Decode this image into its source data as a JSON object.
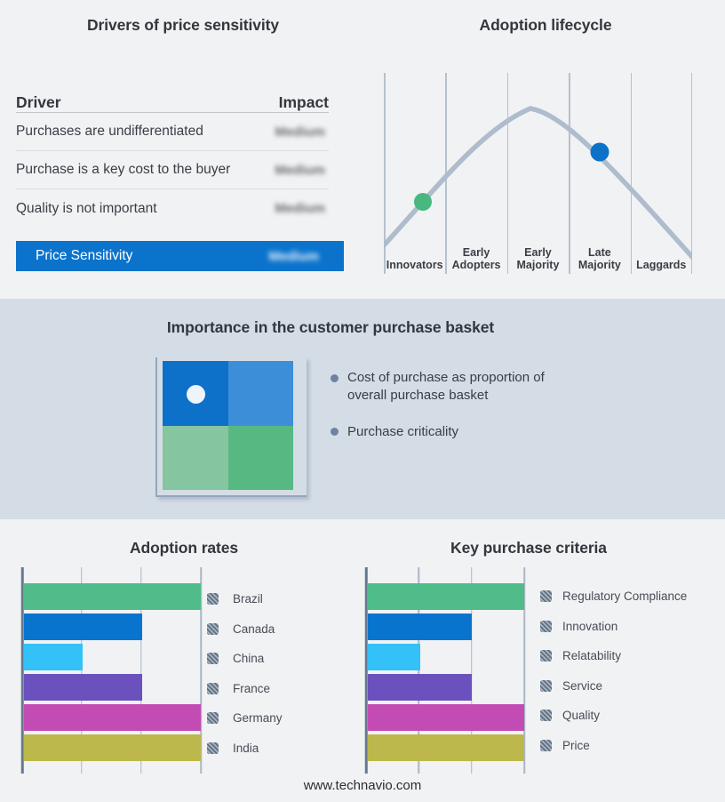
{
  "page": {
    "footer": "www.technavio.com"
  },
  "colors": {
    "accent_blue": "#0b73cc",
    "band_background": "#d4dde6",
    "page_background": "#f1f2f4",
    "curve": "#aebccd",
    "green_dot": "#48b87e",
    "blue_dot": "#0b72c8"
  },
  "price_table": {
    "title": "Drivers of price sensitivity",
    "col_driver": "Driver",
    "col_impact": "Impact",
    "rows": [
      {
        "driver": "Purchases are undifferentiated",
        "impact": "Medium"
      },
      {
        "driver": "Purchase is a key cost to the buyer",
        "impact": "Medium"
      },
      {
        "driver": "Quality is not important",
        "impact": "Medium"
      }
    ],
    "highlight_row": {
      "driver": "Price Sensitivity",
      "impact": "Medium"
    }
  },
  "lifecycle": {
    "title": "Adoption lifecycle",
    "stages": [
      "Innovators",
      "Early Adopters",
      "Early Majority",
      "Late Majority",
      "Laggards"
    ],
    "markers": [
      {
        "stage": "Innovators",
        "color": "#48b87e"
      },
      {
        "stage": "Late Majority",
        "color": "#0b72c8"
      }
    ]
  },
  "purchase_basket": {
    "title": "Importance in the customer purchase basket",
    "bullets": [
      "Cost of purchase as proportion of overall purchase basket",
      "Purchase criticality"
    ],
    "quadrant_colors": {
      "top_left": "#0d70c9",
      "top_right": "#3d8ed8",
      "bottom_left": "#85c5a0",
      "bottom_right": "#57b981"
    }
  },
  "chart_data": [
    {
      "type": "bar",
      "orientation": "horizontal",
      "title": "Adoption rates",
      "categories": [
        "Brazil",
        "Canada",
        "China",
        "France",
        "Germany",
        "India"
      ],
      "values": [
        3,
        2,
        1,
        2,
        3,
        3
      ],
      "colors": [
        "#4fbc8a",
        "#0874cd",
        "#33c1f7",
        "#6a51bd",
        "#c24cb4",
        "#bdb84b"
      ],
      "xlim": [
        0,
        3
      ],
      "grid_divisions": 3,
      "legend_position": "right",
      "axis_labels_hidden": true
    },
    {
      "type": "bar",
      "orientation": "horizontal",
      "title": "Key purchase criteria",
      "categories": [
        "Regulatory Compliance",
        "Innovation",
        "Relatability",
        "Service",
        "Quality",
        "Price"
      ],
      "values": [
        3,
        2,
        1,
        2,
        3,
        3
      ],
      "colors": [
        "#4fbc8a",
        "#0874cd",
        "#33c1f7",
        "#6a51bd",
        "#c24cb4",
        "#bdb84b"
      ],
      "xlim": [
        0,
        3
      ],
      "grid_divisions": 3,
      "legend_position": "right",
      "axis_labels_hidden": true
    }
  ]
}
